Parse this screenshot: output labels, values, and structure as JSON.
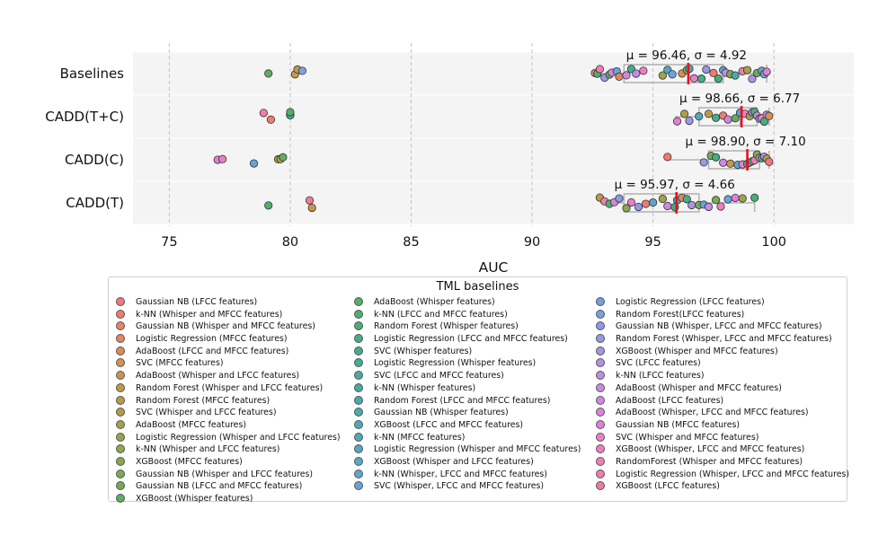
{
  "chart_data": {
    "type": "strip-box",
    "xlabel": "AUC",
    "xlim": [
      73.5,
      103.3
    ],
    "xticks": [
      75,
      80,
      85,
      90,
      95,
      100
    ],
    "grid": true,
    "categories": [
      "Baselines",
      "CADD(T+C)",
      "CADD(C)",
      "CADD(T)"
    ],
    "stats": [
      {
        "category": "Baselines",
        "label": "μ = 96.46, σ = 4.92",
        "mean": 96.46,
        "q1": 93.8,
        "median": 96.5,
        "q3": 97.9,
        "wlo": 92.5,
        "whi": 99.7
      },
      {
        "category": "CADD(T+C)",
        "label": "μ = 98.66, σ = 6.77",
        "mean": 98.66,
        "q1": 96.9,
        "median": 98.6,
        "q3": 99.3,
        "wlo": 95.9,
        "whi": 99.8
      },
      {
        "category": "CADD(C)",
        "label": "μ = 98.90, σ = 7.10",
        "mean": 98.9,
        "q1": 97.3,
        "median": 98.9,
        "q3": 99.4,
        "wlo": 95.6,
        "whi": 99.8
      },
      {
        "category": "CADD(T)",
        "label": "μ = 95.97, σ = 4.66",
        "mean": 95.97,
        "q1": 93.8,
        "median": 96.0,
        "q3": 96.9,
        "wlo": 92.8,
        "whi": 99.2
      }
    ],
    "legend_title": "TML baselines",
    "legend_columns": [
      [
        {
          "label": "Gaussian NB (LFCC features)",
          "color": "#f2777e"
        },
        {
          "label": "k-NN (Whisper and MFCC features)",
          "color": "#f07a6f"
        },
        {
          "label": "Gaussian NB (Whisper and MFCC features)",
          "color": "#ec8068"
        },
        {
          "label": "Logistic Regression (MFCC features)",
          "color": "#e5865e"
        },
        {
          "label": "AdaBoost (LFCC and MFCC features)",
          "color": "#dd8b55"
        },
        {
          "label": "SVC (MFCC features)",
          "color": "#d6904f"
        },
        {
          "label": "AdaBoost (Whisper and LFCC features)",
          "color": "#cc944b"
        },
        {
          "label": "Random Forest (Whisper and LFCC features)",
          "color": "#c29848"
        },
        {
          "label": "Random Forest (MFCC features)",
          "color": "#b99b47"
        },
        {
          "label": "SVC (Whisper and LFCC features)",
          "color": "#b09e47"
        },
        {
          "label": "AdaBoost (MFCC features)",
          "color": "#a6a149"
        },
        {
          "label": "Logistic Regression (Whisper and LFCC features)",
          "color": "#9ca34b"
        },
        {
          "label": "k-NN (Whisper and LFCC features)",
          "color": "#92a54f"
        },
        {
          "label": "XGBoost (MFCC features)",
          "color": "#87a753"
        },
        {
          "label": "Gaussian NB (Whisper and LFCC features)",
          "color": "#7ca957"
        },
        {
          "label": "Gaussian NB (LFCC and MFCC features)",
          "color": "#6fab5b"
        },
        {
          "label": "XGBoost (Whisper features)",
          "color": "#62ac60"
        }
      ],
      [
        {
          "label": "AdaBoost (Whisper features)",
          "color": "#55ad67"
        },
        {
          "label": "k-NN (LFCC and MFCC features)",
          "color": "#4dae6f"
        },
        {
          "label": "Random Forest (Whisper features)",
          "color": "#47ae78"
        },
        {
          "label": "Logistic Regression (LFCC and MFCC features)",
          "color": "#45ae82"
        },
        {
          "label": "SVC (Whisper features)",
          "color": "#44ad8b"
        },
        {
          "label": "Logistic Regression (Whisper features)",
          "color": "#45ad94"
        },
        {
          "label": "SVC (LFCC and MFCC features)",
          "color": "#47ac9c"
        },
        {
          "label": "k-NN (Whisper features)",
          "color": "#48aba3"
        },
        {
          "label": "Random Forest (LFCC and MFCC features)",
          "color": "#4aaaaa"
        },
        {
          "label": "Gaussian NB (Whisper features)",
          "color": "#4caab1"
        },
        {
          "label": "XGBoost (LFCC and MFCC features)",
          "color": "#4ea9b8"
        },
        {
          "label": "k-NN (MFCC features)",
          "color": "#51a8bf"
        },
        {
          "label": "Logistic Regression (Whisper and MFCC features)",
          "color": "#55a7c6"
        },
        {
          "label": "XGBoost (Whisper and LFCC features)",
          "color": "#5aa6cd"
        },
        {
          "label": "k-NN (Whisper, LFCC and MFCC features)",
          "color": "#60a5d3"
        },
        {
          "label": "SVC (Whisper, LFCC and MFCC features)",
          "color": "#67a3d9"
        }
      ],
      [
        {
          "label": "Logistic Regression (LFCC features)",
          "color": "#71a1dd"
        },
        {
          "label": "Random Forest(LFCC features)",
          "color": "#7b9fe1"
        },
        {
          "label": "Gaussian NB (Whisper, LFCC and MFCC features)",
          "color": "#879ce4"
        },
        {
          "label": "Random Forest (Whisper, LFCC and MFCC features)",
          "color": "#9599e5"
        },
        {
          "label": "XGBoost (Whisper and MFCC features)",
          "color": "#a296e6"
        },
        {
          "label": "SVC (LFCC features)",
          "color": "#af92e6"
        },
        {
          "label": "k-NN (LFCC features)",
          "color": "#bc8ee5"
        },
        {
          "label": "AdaBoost (Whisper and MFCC features)",
          "color": "#c78ae3"
        },
        {
          "label": "AdaBoost (LFCC features)",
          "color": "#d186df"
        },
        {
          "label": "AdaBoost (Whisper, LFCC and MFCC features)",
          "color": "#da83da"
        },
        {
          "label": "Gaussian NB (MFCC features)",
          "color": "#e380d3"
        },
        {
          "label": "SVC (Whisper and MFCC features)",
          "color": "#e97fca"
        },
        {
          "label": "XGBoost (Whisper, LFCC and MFCC features)",
          "color": "#ee7ec0"
        },
        {
          "label": "RandomForest (Whisper and MFCC features)",
          "color": "#f17db5"
        },
        {
          "label": "Logistic Regression (Whisper, LFCC and MFCC features)",
          "color": "#f37caa"
        },
        {
          "label": "XGBoost (LFCC features)",
          "color": "#f37a9d"
        }
      ]
    ],
    "points": {
      "Baselines": [
        [
          79.1,
          "#62ac60"
        ],
        [
          80.2,
          "#cc944b"
        ],
        [
          80.3,
          "#b99b47"
        ],
        [
          80.5,
          "#879ce4"
        ],
        [
          92.6,
          "#f2777e"
        ],
        [
          92.7,
          "#4dae6f"
        ],
        [
          92.8,
          "#f17db5"
        ],
        [
          93.0,
          "#a296e6"
        ],
        [
          93.2,
          "#55ad67"
        ],
        [
          93.3,
          "#da83da"
        ],
        [
          93.5,
          "#67a3d9"
        ],
        [
          93.6,
          "#e5865e"
        ],
        [
          93.9,
          "#d186df"
        ],
        [
          94.1,
          "#44ad8b"
        ],
        [
          94.3,
          "#bc8ee5"
        ],
        [
          94.6,
          "#ee7ec0"
        ],
        [
          95.4,
          "#9ca34b"
        ],
        [
          95.6,
          "#55a7c6"
        ],
        [
          95.8,
          "#71a1dd"
        ],
        [
          96.2,
          "#d6904f"
        ],
        [
          96.4,
          "#87a753"
        ],
        [
          96.5,
          "#4ea9b8"
        ],
        [
          96.7,
          "#e380d3"
        ],
        [
          97.0,
          "#45ae82"
        ],
        [
          97.2,
          "#9599e5"
        ],
        [
          97.5,
          "#f07a6f"
        ],
        [
          97.7,
          "#47ae78"
        ],
        [
          97.9,
          "#5aa6cd"
        ],
        [
          98.0,
          "#c78ae3"
        ],
        [
          98.2,
          "#7ca957"
        ],
        [
          98.4,
          "#4aaaaa"
        ],
        [
          98.7,
          "#f37caa"
        ],
        [
          98.9,
          "#a6a149"
        ],
        [
          99.1,
          "#af92e6"
        ],
        [
          99.3,
          "#6fab5b"
        ],
        [
          99.5,
          "#60a5d3"
        ],
        [
          99.6,
          "#7b9fe1"
        ],
        [
          99.7,
          "#e97fca"
        ]
      ],
      "CADD(T+C)": [
        [
          78.9,
          "#f37caa"
        ],
        [
          79.2,
          "#ec8068"
        ],
        [
          80.0,
          "#87a753"
        ],
        [
          80.0,
          "#4aaaaa"
        ],
        [
          80.0,
          "#55ad67"
        ],
        [
          96.0,
          "#e380d3"
        ],
        [
          96.3,
          "#b09e47"
        ],
        [
          96.5,
          "#a296e6"
        ],
        [
          96.9,
          "#4ea9b8"
        ],
        [
          97.3,
          "#c29848"
        ],
        [
          97.6,
          "#44ad8b"
        ],
        [
          97.9,
          "#f07a6f"
        ],
        [
          98.1,
          "#d186df"
        ],
        [
          98.4,
          "#62ac60"
        ],
        [
          98.6,
          "#5aa6cd"
        ],
        [
          98.8,
          "#ee7ec0"
        ],
        [
          99.0,
          "#9ca34b"
        ],
        [
          99.1,
          "#af92e6"
        ],
        [
          99.2,
          "#47ae78"
        ],
        [
          99.3,
          "#da83da"
        ],
        [
          99.4,
          "#67a3d9"
        ],
        [
          99.5,
          "#f17db5"
        ],
        [
          99.6,
          "#45ae82"
        ],
        [
          99.7,
          "#bc8ee5"
        ],
        [
          99.8,
          "#dd8b55"
        ]
      ],
      "CADD(C)": [
        [
          77.0,
          "#da83da"
        ],
        [
          77.2,
          "#ee7ec0"
        ],
        [
          78.5,
          "#67a3d9"
        ],
        [
          79.5,
          "#9ca34b"
        ],
        [
          79.6,
          "#b09e47"
        ],
        [
          79.7,
          "#62ac60"
        ],
        [
          95.6,
          "#f07a6f"
        ],
        [
          97.1,
          "#9599e5"
        ],
        [
          97.4,
          "#7ca957"
        ],
        [
          97.6,
          "#45ae82"
        ],
        [
          97.9,
          "#d186df"
        ],
        [
          98.2,
          "#cc944b"
        ],
        [
          98.5,
          "#60a5d3"
        ],
        [
          98.7,
          "#e380d3"
        ],
        [
          98.9,
          "#55ad67"
        ],
        [
          99.0,
          "#af92e6"
        ],
        [
          99.1,
          "#4ea9b8"
        ],
        [
          99.2,
          "#f37caa"
        ],
        [
          99.3,
          "#87a753"
        ],
        [
          99.4,
          "#bc8ee5"
        ],
        [
          99.5,
          "#47ae78"
        ],
        [
          99.6,
          "#c78ae3"
        ],
        [
          99.7,
          "#a6a149"
        ],
        [
          99.8,
          "#f2777e"
        ]
      ],
      "CADD(T)": [
        [
          79.1,
          "#55ad67"
        ],
        [
          80.8,
          "#f37a9d"
        ],
        [
          80.9,
          "#cc944b"
        ],
        [
          92.8,
          "#b99b47"
        ],
        [
          93.0,
          "#f17db5"
        ],
        [
          93.2,
          "#4dae6f"
        ],
        [
          93.4,
          "#da83da"
        ],
        [
          93.6,
          "#879ce4"
        ],
        [
          93.9,
          "#87a753"
        ],
        [
          94.1,
          "#e97fca"
        ],
        [
          94.4,
          "#9599e5"
        ],
        [
          94.7,
          "#f07a6f"
        ],
        [
          95.0,
          "#5aa6cd"
        ],
        [
          95.4,
          "#a6a149"
        ],
        [
          95.6,
          "#d186df"
        ],
        [
          95.9,
          "#45ae82"
        ],
        [
          96.0,
          "#4ea9b8"
        ],
        [
          96.2,
          "#e5865e"
        ],
        [
          96.4,
          "#44ad8b"
        ],
        [
          96.6,
          "#af92e6"
        ],
        [
          96.9,
          "#6fab5b"
        ],
        [
          97.1,
          "#60a5d3"
        ],
        [
          97.3,
          "#c78ae3"
        ],
        [
          97.6,
          "#7ca957"
        ],
        [
          97.8,
          "#ee7ec0"
        ],
        [
          98.1,
          "#67a3d9"
        ],
        [
          98.4,
          "#e380d3"
        ],
        [
          98.7,
          "#9ca34b"
        ],
        [
          99.2,
          "#47ae78"
        ]
      ]
    }
  }
}
